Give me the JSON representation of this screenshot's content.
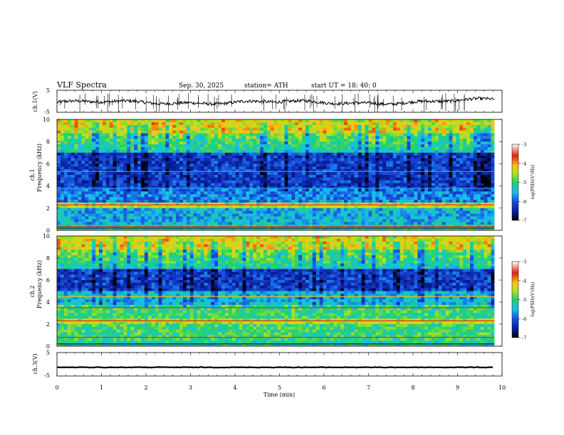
{
  "header": {
    "title": "VLF  Spectra",
    "date": "Sep. 30, 2025",
    "station": "station= ATH",
    "start": "start  UT  =    18: 40: 0"
  },
  "colors": {
    "spectrogram_scale": [
      "#000000",
      "#0a1e9e",
      "#1a4fe0",
      "#16c0f0",
      "#1fd36a",
      "#b7e21c",
      "#f6c514",
      "#e61e10",
      "#ffffff"
    ],
    "trace": "#000000"
  },
  "chart_data": [
    {
      "type": "line",
      "panel": "ch1-waveform",
      "ylabel": "ch.1(V)",
      "ylim": [
        -5,
        5
      ],
      "yticks": [
        "5",
        "-5"
      ],
      "xlim": [
        0,
        10
      ],
      "x_extent_min": 9.83,
      "approx_level": -0.5
    },
    {
      "type": "heatmap",
      "panel": "ch1-spectrogram",
      "ylabel": "ch.1\nFrequency  (kHz)",
      "ylim": [
        0,
        10
      ],
      "yticks": [
        "0",
        "2",
        "4",
        "6",
        "8",
        "10"
      ],
      "colorbar": {
        "label": "log(PSD)(V²/Hz)",
        "range": [
          -7,
          -3
        ],
        "ticks": [
          "-3",
          "-4",
          "-5",
          "-6",
          "-7"
        ]
      }
    },
    {
      "type": "heatmap",
      "panel": "ch2-spectrogram",
      "ylabel": "ch.2\nFrequency  (kHz)",
      "ylim": [
        0,
        10
      ],
      "yticks": [
        "0",
        "2",
        "4",
        "6",
        "8",
        "10"
      ],
      "colorbar": {
        "label": "log(PSD)(V²/Hz)",
        "range": [
          -7,
          -3
        ],
        "ticks": [
          "-3",
          "-4",
          "-5",
          "-6",
          "-7"
        ]
      }
    },
    {
      "type": "line",
      "panel": "ch3-waveform",
      "ylabel": "ch.3(V)",
      "ylim": [
        -5,
        5
      ],
      "yticks": [
        "5",
        "-5"
      ],
      "approx_level": -1.3
    }
  ],
  "xaxis": {
    "label": "Time  (min)",
    "ticks": [
      "0",
      "1",
      "2",
      "3",
      "4",
      "5",
      "6",
      "7",
      "8",
      "9",
      "10"
    ]
  }
}
